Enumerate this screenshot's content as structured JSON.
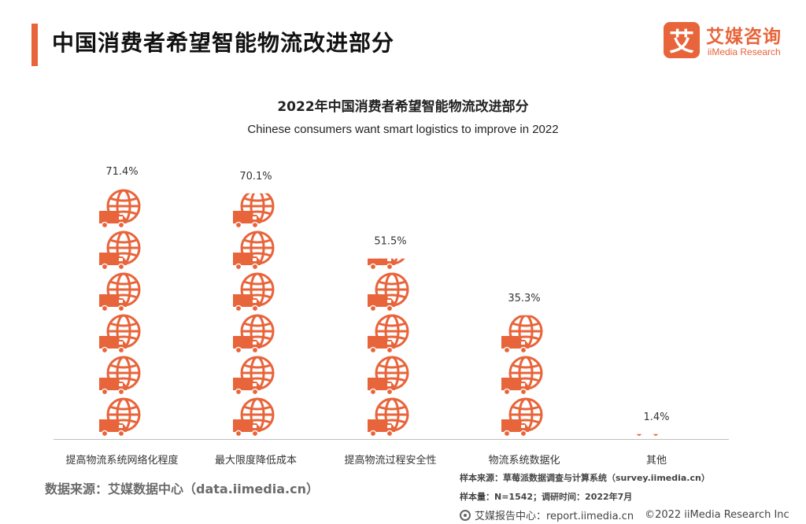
{
  "header": {
    "title": "中国消费者希望智能物流改进部分",
    "logo_mark": "艾",
    "logo_cn": "艾媒咨询",
    "logo_en": "iiMedia Research"
  },
  "chart_data": {
    "type": "bar",
    "style": "pictogram",
    "title": "2022年中国消费者希望智能物流改进部分",
    "subtitle": "Chinese consumers want smart logistics to improve in 2022",
    "categories": [
      "提高物流系统网络化程度",
      "最大限度降低成本",
      "提高物流过程安全性",
      "物流系统数据化",
      "其他"
    ],
    "values": [
      71.4,
      70.1,
      51.5,
      35.3,
      1.4
    ],
    "value_labels": [
      "71.4%",
      "70.1%",
      "51.5%",
      "35.3%",
      "1.4%"
    ],
    "ylim": [
      0,
      71.4
    ],
    "unit": "%",
    "color": "#e8643a",
    "icon": "truck-globe-icon",
    "grid": false,
    "legend": "none"
  },
  "footer": {
    "source_left": "数据来源：艾媒数据中心（data.iimedia.cn）",
    "sample_source": "样本来源：草莓派数据调查与计算系统（survey.iimedia.cn）",
    "sample_size": "样本量：N=1542；调研时间：2022年7月",
    "report_center": "艾媒报告中心：report.iimedia.cn",
    "copyright": "©2022  iiMedia Research  Inc"
  }
}
